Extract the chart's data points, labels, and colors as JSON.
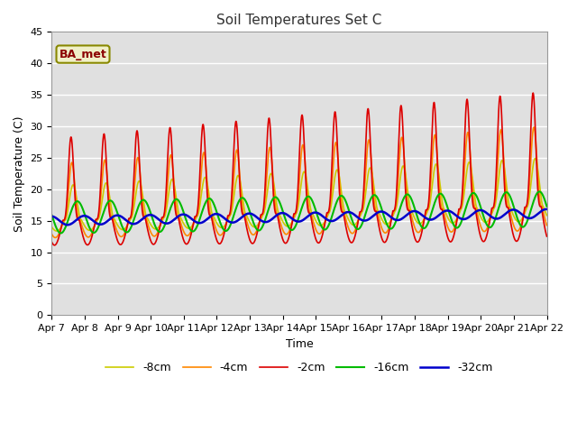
{
  "title": "Soil Temperatures Set C",
  "xlabel": "Time",
  "ylabel": "Soil Temperature (C)",
  "ylim": [
    0,
    45
  ],
  "background_color": "#e0e0e0",
  "legend_label": "BA_met",
  "x_tick_labels": [
    "Apr 7",
    "Apr 8",
    "Apr 9",
    "Apr 10",
    "Apr 11",
    "Apr 12",
    "Apr 13",
    "Apr 14",
    "Apr 15",
    "Apr 16",
    "Apr 17",
    "Apr 18",
    "Apr 19",
    "Apr 20",
    "Apr 21",
    "Apr 22"
  ],
  "series": {
    "-2cm": {
      "color": "#dd0000",
      "lw": 1.2
    },
    "-4cm": {
      "color": "#ff8800",
      "lw": 1.2
    },
    "-8cm": {
      "color": "#cccc00",
      "lw": 1.2
    },
    "-16cm": {
      "color": "#00bb00",
      "lw": 1.5
    },
    "-32cm": {
      "color": "#0000cc",
      "lw": 1.8
    }
  }
}
